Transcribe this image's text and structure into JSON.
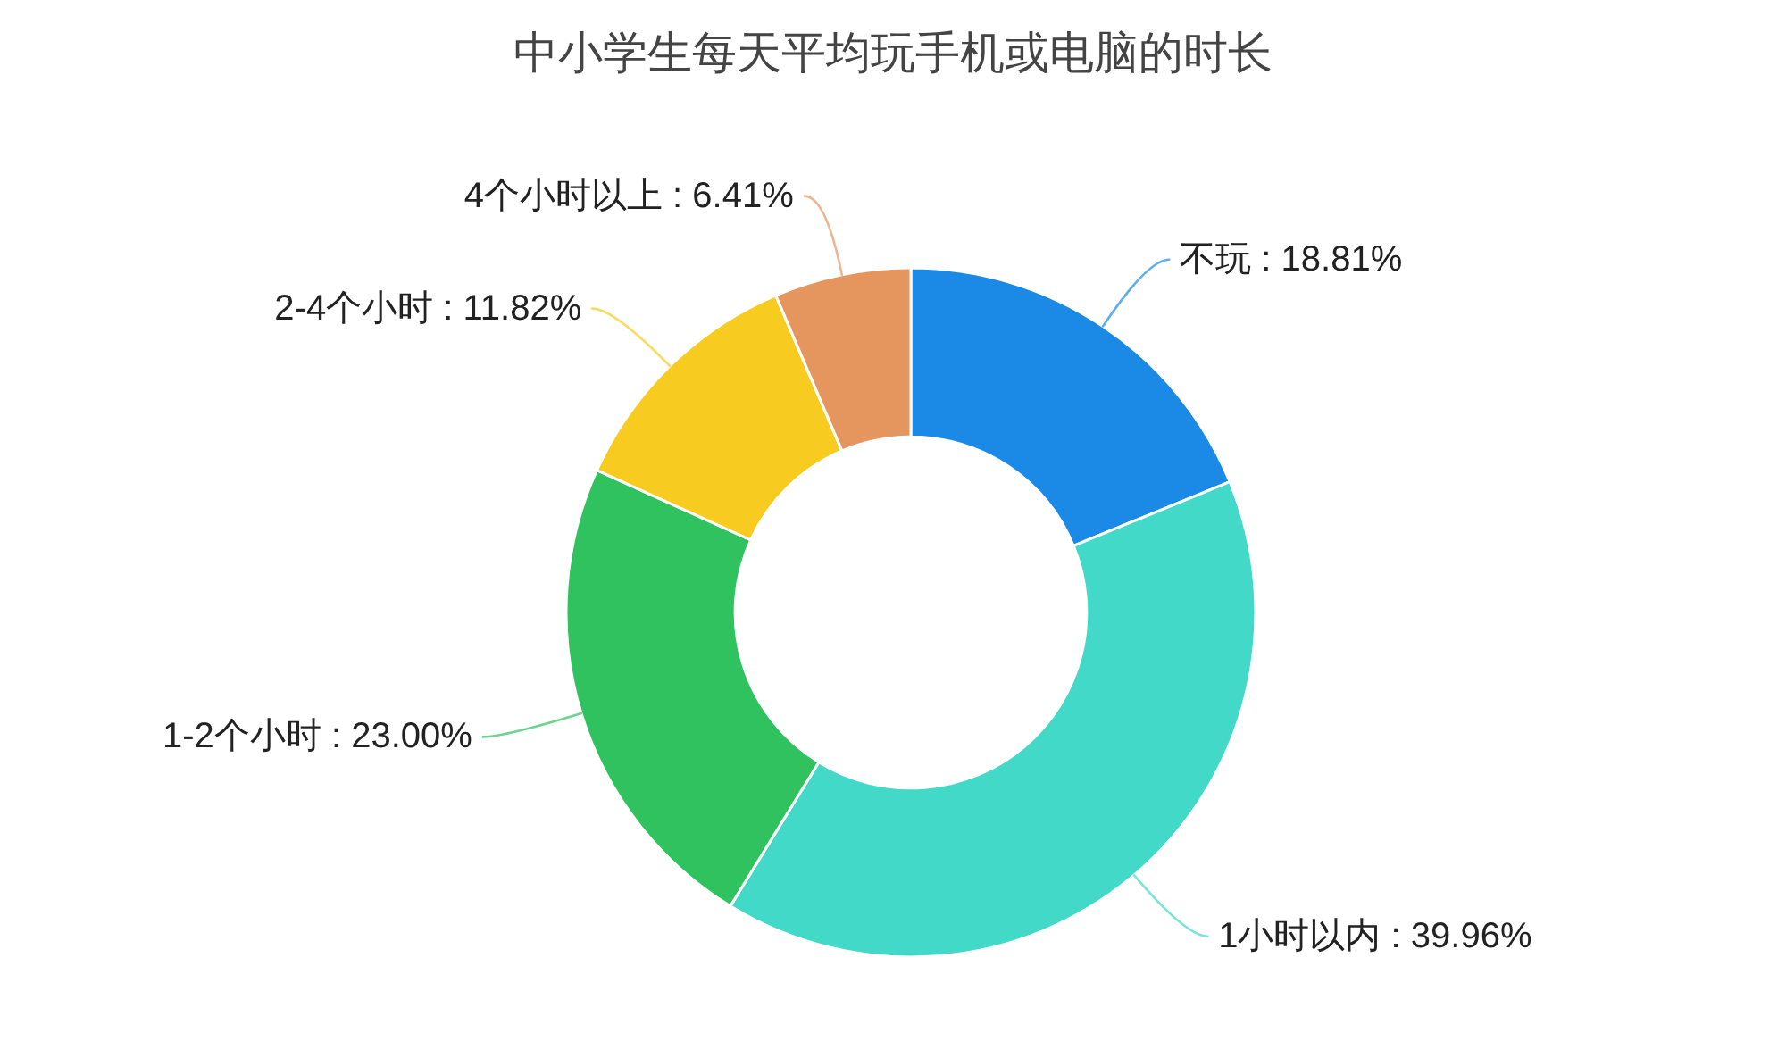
{
  "chart_data": {
    "type": "donut",
    "title": "中小学生每天平均玩手机或电脑的时长",
    "categories": [
      "不玩",
      "1小时以内",
      "1-2个小时",
      "2-4个小时",
      "4个小时以上"
    ],
    "values": [
      18.81,
      39.96,
      23.0,
      11.82,
      6.41
    ],
    "value_labels": [
      "18.81%",
      "39.96%",
      "23.00%",
      "11.82%",
      "6.41%"
    ],
    "colors": [
      "#1b8ae6",
      "#42d9c8",
      "#2fc25f",
      "#f7cb1f",
      "#e5965f"
    ]
  }
}
